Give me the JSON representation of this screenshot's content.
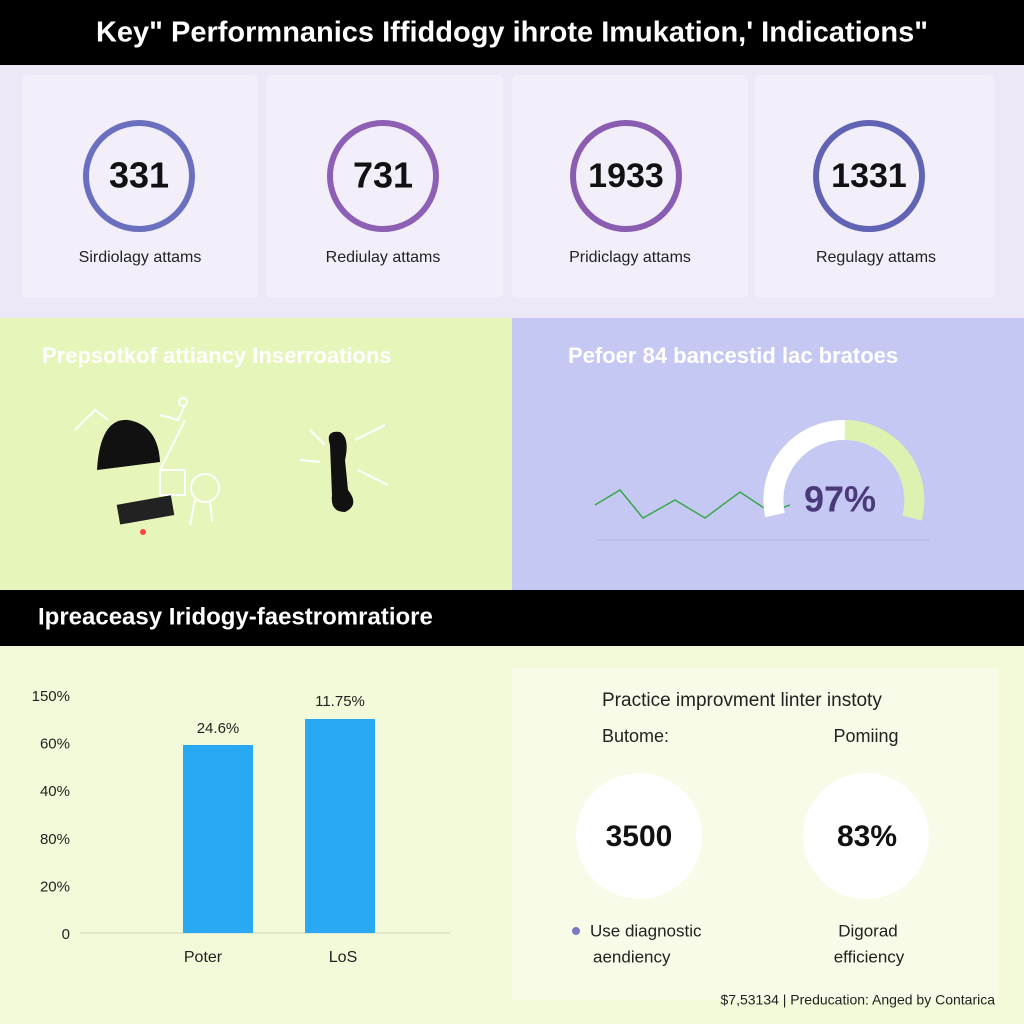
{
  "header": {
    "title": "Key\" Performnanics Iffiddogy ihrote Imukation,' Indications\""
  },
  "kpis": [
    {
      "value": "331",
      "label": "Sirdiolagy attams"
    },
    {
      "value": "731",
      "label": "Rediulay attams"
    },
    {
      "value": "1933",
      "label": "Pridiclagy attams"
    },
    {
      "value": "1331",
      "label": "Regulagy attams"
    }
  ],
  "left_panel": {
    "title": "Prepsotkof attiancy Inserroations"
  },
  "right_panel": {
    "title": "Pefoer 84 bancestid lac bratoes",
    "gauge_label": "97%"
  },
  "band": {
    "title": "Ipreaceasy Iridogy-faestromratiore"
  },
  "bar_panel": {
    "axis_labels": [
      "150%",
      "60%",
      "40%",
      "80%",
      "20%",
      "0"
    ],
    "bars": [
      {
        "label": "Poter",
        "value_label": "24.6%"
      },
      {
        "label": "LoS",
        "value_label": "11.75%"
      }
    ]
  },
  "improvement_panel": {
    "title": "Practice improvment linter instoty",
    "columns": [
      {
        "heading": "Butome:",
        "value": "3500",
        "caption_lines": [
          "Use diagnostic",
          "aendiency"
        ]
      },
      {
        "heading": "Pomiing",
        "value": "83%",
        "caption_lines": [
          "Digorad",
          "efficiency"
        ]
      }
    ]
  },
  "footer": {
    "text": "$7,53134 | Preducation: Anged by Contarica"
  }
}
